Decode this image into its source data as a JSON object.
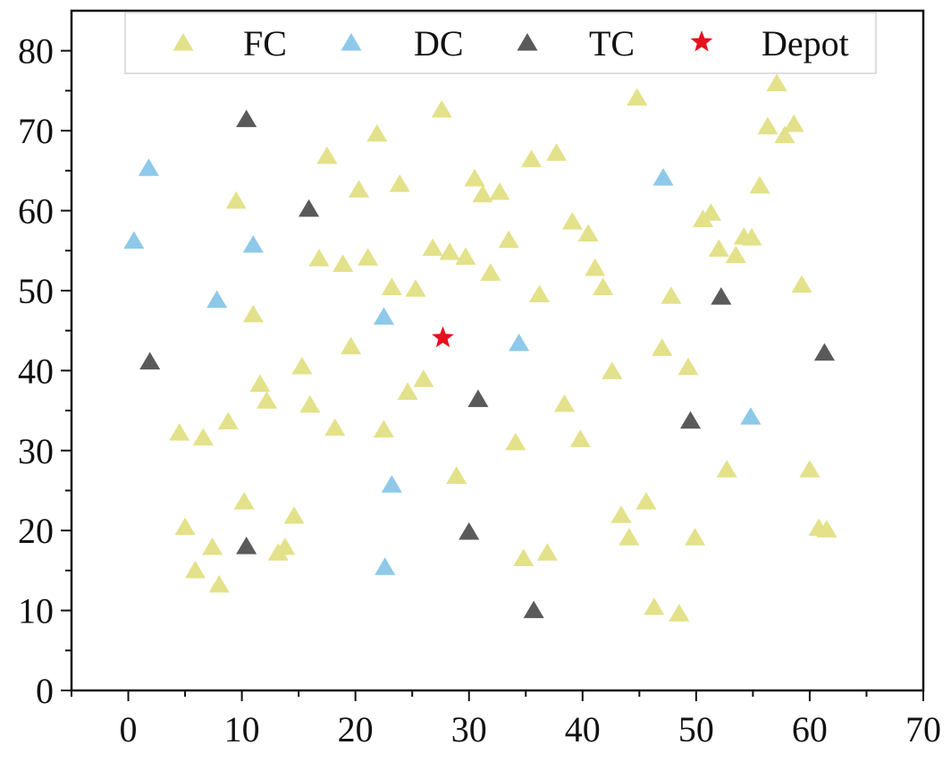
{
  "chart_data": {
    "type": "scatter",
    "xlim": [
      -5,
      70
    ],
    "ylim": [
      0,
      85
    ],
    "x_ticks": [
      0,
      10,
      20,
      30,
      40,
      50,
      60,
      70
    ],
    "y_ticks": [
      0,
      10,
      20,
      30,
      40,
      50,
      60,
      70,
      80
    ],
    "grid": false,
    "legend_position": "top",
    "series": [
      {
        "name": "FC",
        "marker": "triangle",
        "color": "#e3e18a",
        "points": [
          [
            4.5,
            32.2
          ],
          [
            5,
            20.4
          ],
          [
            5.9,
            15
          ],
          [
            6.6,
            31.6
          ],
          [
            7.4,
            17.9
          ],
          [
            8,
            13.2
          ],
          [
            8.8,
            33.6
          ],
          [
            9.5,
            61.2
          ],
          [
            10.2,
            23.6
          ],
          [
            11,
            47
          ],
          [
            11.6,
            38.3
          ],
          [
            12.2,
            36.2
          ],
          [
            13.2,
            17.2
          ],
          [
            13.8,
            17.9
          ],
          [
            14.6,
            21.8
          ],
          [
            15.3,
            40.5
          ],
          [
            16,
            35.7
          ],
          [
            16.8,
            54
          ],
          [
            17.5,
            66.8
          ],
          [
            18.2,
            32.8
          ],
          [
            18.9,
            53.3
          ],
          [
            19.6,
            43
          ],
          [
            20.3,
            62.6
          ],
          [
            21.1,
            54.1
          ],
          [
            21.9,
            69.6
          ],
          [
            22.5,
            32.6
          ],
          [
            23.2,
            50.4
          ],
          [
            23.9,
            63.3
          ],
          [
            24.6,
            37.3
          ],
          [
            25.3,
            50.2
          ],
          [
            26,
            38.9
          ],
          [
            26.8,
            55.3
          ],
          [
            27.6,
            72.6
          ],
          [
            28.3,
            54.8
          ],
          [
            28.9,
            26.8
          ],
          [
            29.7,
            54.2
          ],
          [
            30.5,
            64
          ],
          [
            31.2,
            62
          ],
          [
            31.9,
            52.2
          ],
          [
            32.7,
            62.3
          ],
          [
            33.5,
            56.3
          ],
          [
            34.1,
            31
          ],
          [
            34.8,
            16.5
          ],
          [
            35.5,
            66.4
          ],
          [
            36.2,
            49.5
          ],
          [
            36.9,
            17.2
          ],
          [
            37.7,
            67.2
          ],
          [
            38.4,
            35.8
          ],
          [
            39.1,
            58.6
          ],
          [
            39.8,
            31.4
          ],
          [
            40.5,
            57.1
          ],
          [
            41.1,
            52.8
          ],
          [
            41.8,
            50.4
          ],
          [
            42.6,
            39.9
          ],
          [
            43.4,
            21.9
          ],
          [
            44.1,
            19.1
          ],
          [
            44.8,
            74.1
          ],
          [
            45.6,
            23.6
          ],
          [
            46.3,
            10.4
          ],
          [
            47,
            42.8
          ],
          [
            47.8,
            49.3
          ],
          [
            48.5,
            9.6
          ],
          [
            49.3,
            40.4
          ],
          [
            49.9,
            19.1
          ],
          [
            50.6,
            58.9
          ],
          [
            51.3,
            59.7
          ],
          [
            52,
            55.2
          ],
          [
            52.7,
            27.6
          ],
          [
            53.5,
            54.4
          ],
          [
            54.2,
            56.7
          ],
          [
            54.9,
            56.6
          ],
          [
            55.6,
            63.1
          ],
          [
            56.3,
            70.5
          ],
          [
            57.1,
            75.9
          ],
          [
            57.8,
            69.4
          ],
          [
            58.6,
            70.8
          ],
          [
            59.3,
            50.7
          ],
          [
            60,
            27.6
          ],
          [
            60.8,
            20.3
          ],
          [
            61.5,
            20.1
          ]
        ]
      },
      {
        "name": "DC",
        "marker": "triangle",
        "color": "#8ec9ea",
        "points": [
          [
            0.5,
            56.2
          ],
          [
            1.8,
            65.3
          ],
          [
            7.8,
            48.8
          ],
          [
            11,
            55.7
          ],
          [
            22.5,
            46.7
          ],
          [
            22.6,
            15.4
          ],
          [
            23.2,
            25.7
          ],
          [
            34.4,
            43.4
          ],
          [
            47.1,
            64.1
          ],
          [
            54.8,
            34.2
          ]
        ]
      },
      {
        "name": "TC",
        "marker": "triangle",
        "color": "#5a5a5a",
        "points": [
          [
            1.9,
            41.1
          ],
          [
            10.4,
            71.4
          ],
          [
            10.4,
            18
          ],
          [
            15.9,
            60.2
          ],
          [
            30.8,
            36.4
          ],
          [
            30,
            19.8
          ],
          [
            35.7,
            10
          ],
          [
            49.5,
            33.7
          ],
          [
            52.2,
            49.2
          ],
          [
            61.3,
            42.2
          ]
        ]
      },
      {
        "name": "Depot",
        "marker": "star",
        "color": "#e8101e",
        "points": [
          [
            27.7,
            44.1
          ]
        ]
      }
    ]
  }
}
